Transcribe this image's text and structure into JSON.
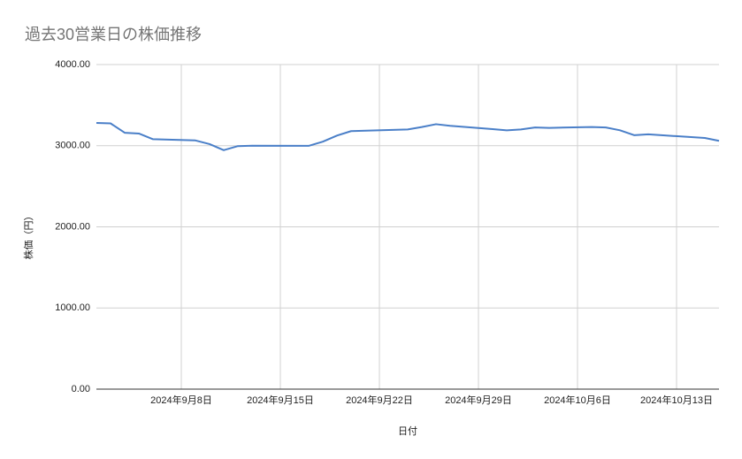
{
  "chart_data": {
    "type": "line",
    "title": "過去30営業日の株価推移",
    "x_label": "日付",
    "y_label": "株価（円）",
    "x": [
      "2024-09-02",
      "2024-09-03",
      "2024-09-04",
      "2024-09-05",
      "2024-09-06",
      "2024-09-09",
      "2024-09-10",
      "2024-09-11",
      "2024-09-12",
      "2024-09-13",
      "2024-09-17",
      "2024-09-18",
      "2024-09-19",
      "2024-09-20",
      "2024-09-24",
      "2024-09-25",
      "2024-09-26",
      "2024-09-27",
      "2024-09-30",
      "2024-10-01",
      "2024-10-02",
      "2024-10-03",
      "2024-10-04",
      "2024-10-07",
      "2024-10-08",
      "2024-10-09",
      "2024-10-10",
      "2024-10-11",
      "2024-10-15",
      "2024-10-16"
    ],
    "series": [
      {
        "name": "株価",
        "color": "#4a7fc8",
        "values": [
          3280,
          3275,
          3160,
          3150,
          3080,
          3065,
          3020,
          2945,
          2995,
          3000,
          2998,
          3050,
          3125,
          3180,
          3200,
          3230,
          3265,
          3245,
          3205,
          3190,
          3200,
          3225,
          3220,
          3230,
          3225,
          3190,
          3130,
          3140,
          3095,
          3060
        ]
      }
    ],
    "xlim": [
      "2024-09-02",
      "2024-10-16"
    ],
    "xticks": [
      {
        "value": "2024-09-08",
        "label": "2024年9月8日"
      },
      {
        "value": "2024-09-15",
        "label": "2024年9月15日"
      },
      {
        "value": "2024-09-22",
        "label": "2024年9月22日"
      },
      {
        "value": "2024-09-29",
        "label": "2024年9月29日"
      },
      {
        "value": "2024-10-06",
        "label": "2024年10月6日"
      },
      {
        "value": "2024-10-13",
        "label": "2024年10月13日"
      }
    ],
    "ylim": [
      0,
      4000
    ],
    "yticks": [
      {
        "value": 0,
        "label": "0.00"
      },
      {
        "value": 1000,
        "label": "1000.00"
      },
      {
        "value": 2000,
        "label": "2000.00"
      },
      {
        "value": 3000,
        "label": "3000.00"
      },
      {
        "value": 4000,
        "label": "4000.00"
      }
    ],
    "grid": true
  }
}
